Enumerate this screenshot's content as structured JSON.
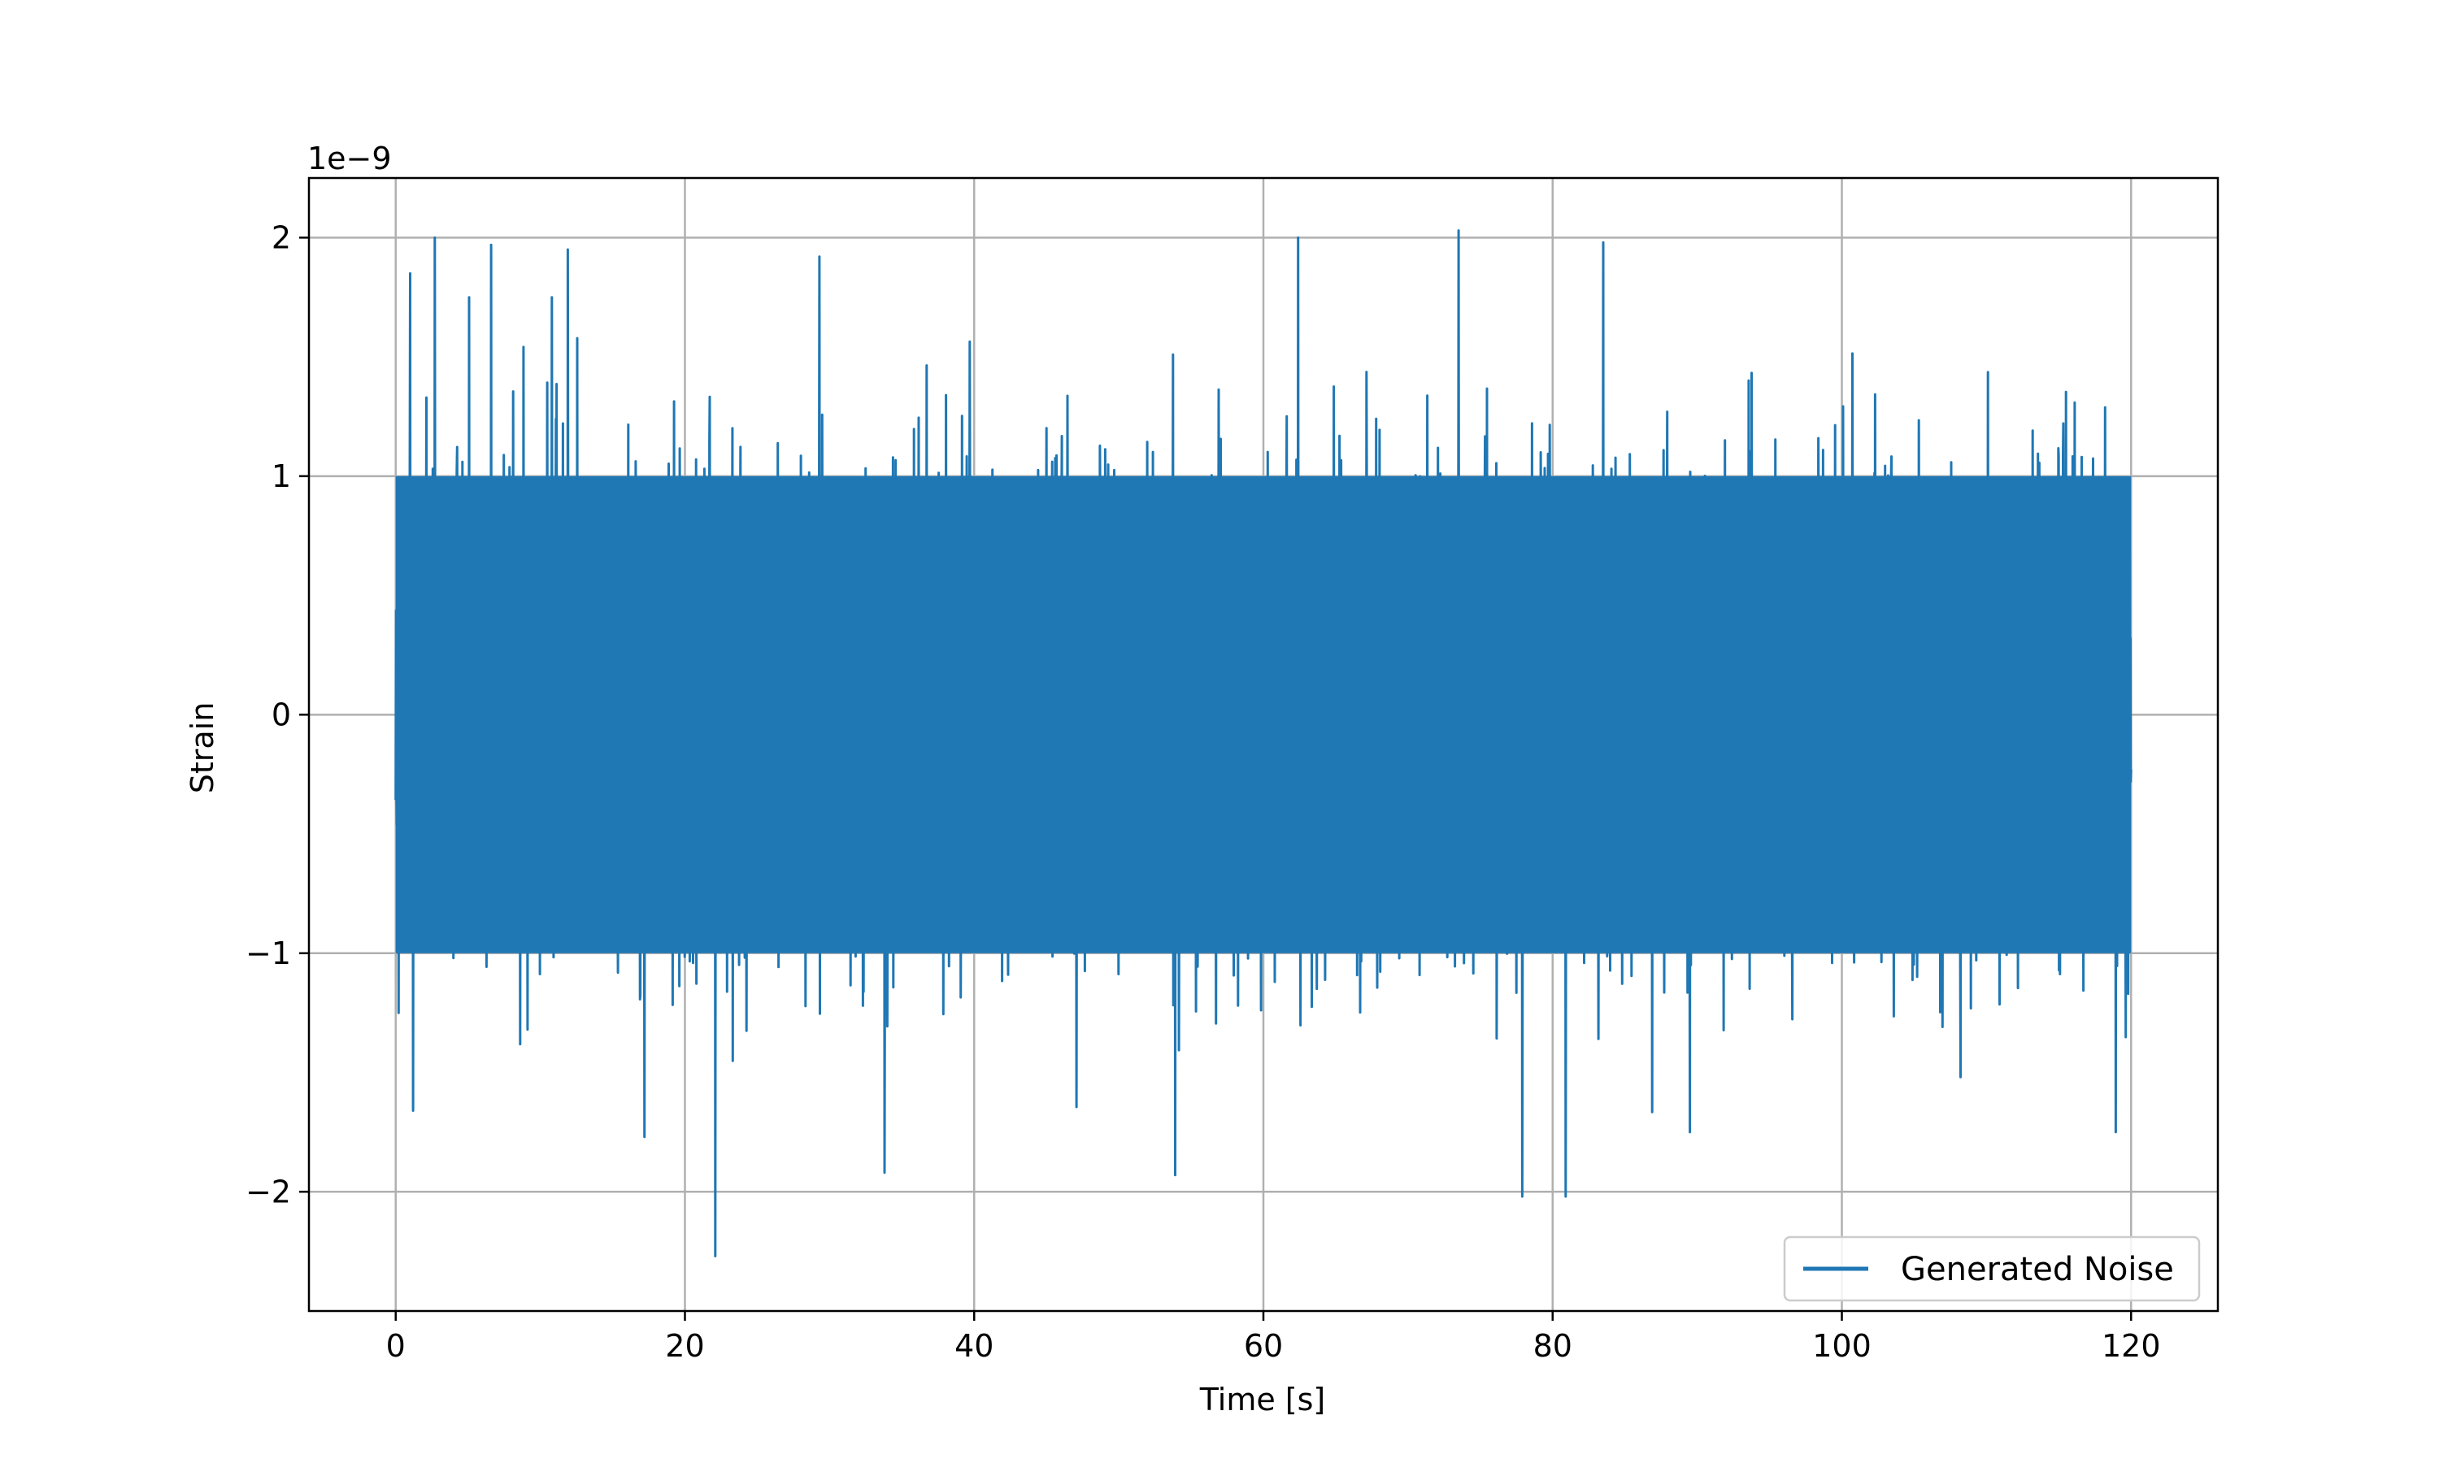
{
  "chart_data": {
    "type": "line",
    "title": "",
    "xlabel": "Time [s]",
    "ylabel": "Strain",
    "y_offset_text": "1e−9",
    "xlim": [
      -6,
      126
    ],
    "ylim": [
      -2.5,
      2.25
    ],
    "xticks": [
      0,
      20,
      40,
      60,
      80,
      100,
      120
    ],
    "xtick_labels": [
      "0",
      "20",
      "40",
      "60",
      "80",
      "100",
      "120"
    ],
    "yticks": [
      -2,
      -1,
      0,
      1,
      2
    ],
    "ytick_labels": [
      "−2",
      "−1",
      "0",
      "1",
      "2"
    ],
    "grid": true,
    "legend": {
      "position": "lower-right",
      "entries": [
        "Generated Noise"
      ]
    },
    "series": [
      {
        "name": "Generated Noise",
        "color": "#1f77b4",
        "x_range": [
          0,
          120
        ],
        "core_band": [
          -1.0,
          1.0
        ],
        "peaks": [
          {
            "x": 0.2,
            "y": 1.02
          },
          {
            "x": 1.0,
            "y": 1.85
          },
          {
            "x": 2.7,
            "y": 2.0
          },
          {
            "x": 6.6,
            "y": 1.97
          },
          {
            "x": 11.9,
            "y": 1.95
          },
          {
            "x": 29.3,
            "y": 1.92
          },
          {
            "x": 62.4,
            "y": 2.0
          },
          {
            "x": 73.5,
            "y": 2.03
          },
          {
            "x": 83.5,
            "y": 1.98
          },
          {
            "x": 119.8,
            "y": 0.8
          }
        ],
        "troughs": [
          {
            "x": 0.2,
            "y": -1.25
          },
          {
            "x": 1.2,
            "y": -1.66
          },
          {
            "x": 17.2,
            "y": -1.77
          },
          {
            "x": 22.1,
            "y": -2.27
          },
          {
            "x": 33.8,
            "y": -1.92
          },
          {
            "x": 53.9,
            "y": -1.93
          },
          {
            "x": 77.9,
            "y": -2.02
          },
          {
            "x": 80.9,
            "y": -2.02
          },
          {
            "x": 119.8,
            "y": -1.17
          }
        ]
      }
    ]
  }
}
